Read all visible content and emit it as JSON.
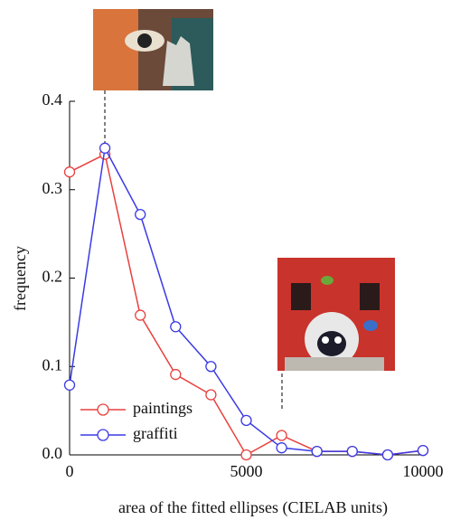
{
  "chart_data": {
    "type": "line",
    "x": [
      0,
      1000,
      2000,
      3000,
      4000,
      5000,
      6000,
      7000,
      8000,
      9000,
      10000
    ],
    "series": [
      {
        "name": "paintings",
        "color": "#e8413f",
        "values": [
          0.32,
          0.34,
          0.158,
          0.091,
          0.068,
          0.0,
          0.022,
          0.004,
          0.004,
          0.0,
          0.005
        ]
      },
      {
        "name": "graffiti",
        "color": "#3a3ae6",
        "values": [
          0.079,
          0.347,
          0.272,
          0.145,
          0.1,
          0.039,
          0.008,
          0.004,
          0.004,
          0.0,
          0.005
        ]
      }
    ],
    "xlabel": "area of the fitted ellipses (CIELAB units)",
    "ylabel": "frequency",
    "xlim": [
      0,
      10000
    ],
    "xticks": [
      0,
      5000,
      10000
    ],
    "ylim": [
      0,
      0.4
    ],
    "yticks": [
      {
        "value": 0,
        "label": "0.0"
      },
      0.1,
      0.2,
      0.3,
      0.4
    ],
    "legend": "lower left"
  }
}
